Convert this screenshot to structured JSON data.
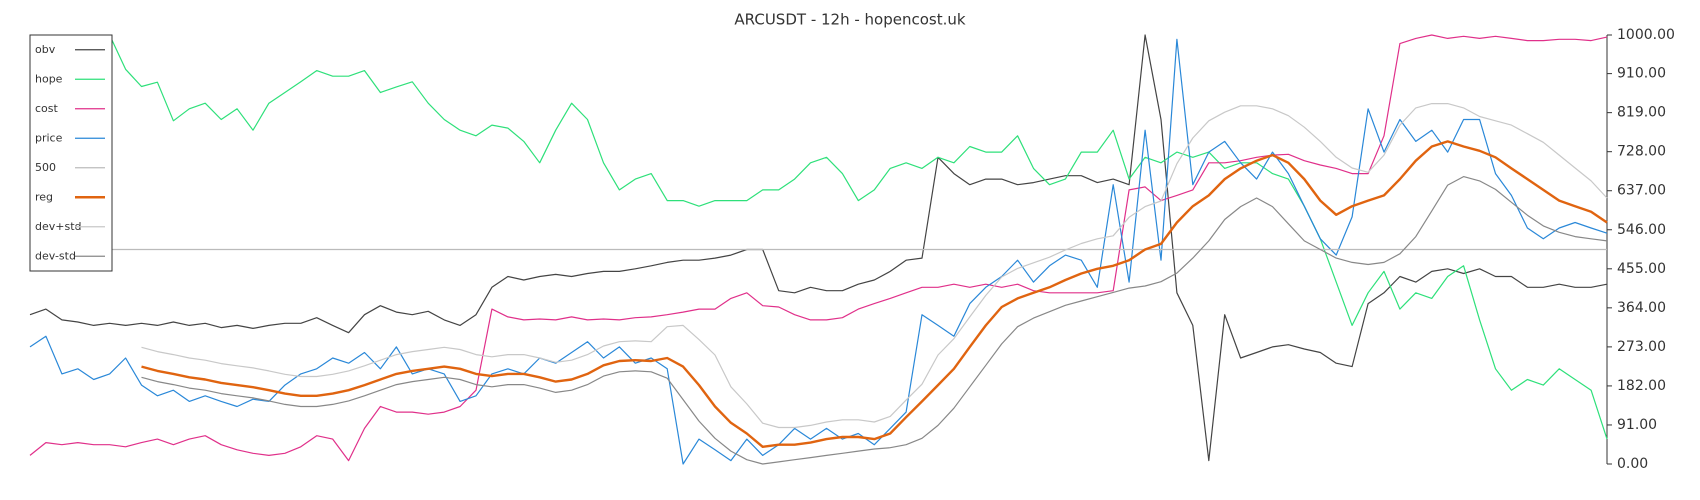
{
  "chart_data": {
    "type": "line",
    "title": "ARCUSDT - 12h - hopencost.uk",
    "ylim": [
      0,
      1000
    ],
    "yticks": [
      {
        "value": 0,
        "label": "0.00"
      },
      {
        "value": 91,
        "label": "91.00"
      },
      {
        "value": 182,
        "label": "182.00"
      },
      {
        "value": 273,
        "label": "273.00"
      },
      {
        "value": 364,
        "label": "364.00"
      },
      {
        "value": 455,
        "label": "455.00"
      },
      {
        "value": 546,
        "label": "546.00"
      },
      {
        "value": 637,
        "label": "637.00"
      },
      {
        "value": 728,
        "label": "728.00"
      },
      {
        "value": 819,
        "label": "819.00"
      },
      {
        "value": 910,
        "label": "910.00"
      },
      {
        "value": 1000,
        "label": "1000.00"
      }
    ],
    "legend": "upper left",
    "series": [
      {
        "name": "obv",
        "color": "#444444",
        "width": 1.2,
        "values": [
          348,
          361,
          336,
          331,
          323,
          328,
          323,
          328,
          323,
          331,
          323,
          328,
          318,
          323,
          316,
          323,
          328,
          328,
          341,
          323,
          306,
          348,
          369,
          354,
          348,
          356,
          336,
          323,
          348,
          412,
          437,
          429,
          437,
          442,
          437,
          444,
          449,
          449,
          455,
          462,
          470,
          475,
          475,
          480,
          487,
          500,
          500,
          404,
          399,
          412,
          404,
          404,
          419,
          429,
          449,
          475,
          480,
          715,
          677,
          651,
          664,
          664,
          651,
          656,
          664,
          672,
          672,
          656,
          664,
          651,
          1000,
          803,
          399,
          323,
          8,
          348,
          247,
          260,
          273,
          278,
          268,
          260,
          235,
          227,
          374,
          399,
          437,
          424,
          449,
          455,
          444,
          455,
          437,
          437,
          412,
          412,
          419,
          412,
          412,
          419
        ]
      },
      {
        "name": "hope",
        "color": "#2ee07a",
        "width": 1.2,
        "values": [
          null,
          null,
          null,
          null,
          null,
          1000,
          920,
          880,
          890,
          800,
          828,
          841,
          803,
          828,
          778,
          841,
          866,
          891,
          917,
          904,
          904,
          917,
          866,
          879,
          891,
          841,
          803,
          778,
          765,
          790,
          783,
          752,
          702,
          778,
          841,
          803,
          702,
          639,
          664,
          677,
          614,
          614,
          601,
          614,
          614,
          614,
          639,
          639,
          664,
          702,
          715,
          677,
          614,
          639,
          689,
          702,
          689,
          715,
          702,
          740,
          727,
          727,
          765,
          689,
          651,
          664,
          727,
          727,
          778,
          664,
          715,
          702,
          727,
          715,
          727,
          689,
          702,
          702,
          677,
          664,
          601,
          525,
          424,
          323,
          399,
          449,
          361,
          399,
          386,
          437,
          462,
          336,
          222,
          172,
          197,
          184,
          222,
          197,
          172,
          58
        ]
      },
      {
        "name": "cost",
        "color": "#e0308a",
        "width": 1.2,
        "values": [
          20,
          50,
          45,
          50,
          45,
          45,
          40,
          50,
          58,
          45,
          58,
          66,
          45,
          33,
          25,
          20,
          25,
          40,
          66,
          58,
          8,
          83,
          134,
          121,
          121,
          116,
          121,
          134,
          172,
          361,
          343,
          336,
          338,
          336,
          343,
          336,
          338,
          336,
          341,
          343,
          348,
          354,
          361,
          361,
          386,
          399,
          369,
          366,
          348,
          336,
          336,
          341,
          361,
          374,
          386,
          399,
          412,
          412,
          419,
          412,
          419,
          412,
          419,
          404,
          399,
          399,
          399,
          399,
          404,
          639,
          646,
          614,
          626,
          639,
          702,
          702,
          707,
          715,
          720,
          722,
          707,
          697,
          689,
          677,
          677,
          765,
          980,
          992,
          1000,
          992,
          997,
          992,
          997,
          992,
          987,
          987,
          990,
          990,
          987,
          995
        ]
      },
      {
        "name": "price",
        "color": "#2a88d8",
        "width": 1.2,
        "values": [
          273,
          298,
          210,
          222,
          197,
          210,
          247,
          184,
          159,
          172,
          146,
          159,
          146,
          134,
          151,
          146,
          184,
          210,
          222,
          247,
          235,
          260,
          222,
          273,
          210,
          222,
          210,
          146,
          159,
          210,
          222,
          210,
          247,
          235,
          260,
          285,
          247,
          273,
          235,
          247,
          222,
          0,
          58,
          33,
          8,
          58,
          20,
          45,
          83,
          58,
          83,
          58,
          71,
          45,
          83,
          121,
          348,
          323,
          298,
          374,
          412,
          437,
          475,
          424,
          462,
          487,
          475,
          412,
          651,
          424,
          778,
          475,
          990,
          651,
          727,
          752,
          702,
          664,
          727,
          677,
          601,
          525,
          487,
          576,
          828,
          727,
          803,
          752,
          778,
          727,
          803,
          803,
          677,
          626,
          550,
          525,
          550,
          563,
          550,
          538
        ]
      },
      {
        "name": "500",
        "color": "#bbbbbb",
        "width": 1.2,
        "values": [
          500,
          500,
          500,
          500,
          500,
          500,
          500,
          500,
          500,
          500,
          500,
          500,
          500,
          500,
          500,
          500,
          500,
          500,
          500,
          500,
          500,
          500,
          500,
          500,
          500,
          500,
          500,
          500,
          500,
          500,
          500,
          500,
          500,
          500,
          500,
          500,
          500,
          500,
          500,
          500,
          500,
          500,
          500,
          500,
          500,
          500,
          500,
          500,
          500,
          500,
          500,
          500,
          500,
          500,
          500,
          500,
          500,
          500,
          500,
          500,
          500,
          500,
          500,
          500,
          500,
          500,
          500,
          500,
          500,
          500,
          500,
          500,
          500,
          500,
          500,
          500,
          500,
          500,
          500,
          500,
          500,
          500,
          500,
          500,
          500,
          500,
          500,
          500,
          500,
          500,
          500,
          500,
          500,
          500,
          500,
          500,
          500,
          500,
          500,
          500
        ]
      },
      {
        "name": "reg",
        "color": "#e06410",
        "width": 2.4,
        "values": [
          null,
          null,
          null,
          null,
          null,
          null,
          null,
          227,
          217,
          210,
          202,
          197,
          189,
          184,
          179,
          172,
          164,
          159,
          159,
          164,
          172,
          184,
          197,
          210,
          217,
          222,
          227,
          222,
          210,
          205,
          210,
          210,
          202,
          192,
          197,
          210,
          230,
          240,
          242,
          240,
          247,
          227,
          184,
          134,
          96,
          71,
          40,
          45,
          45,
          50,
          58,
          63,
          63,
          58,
          71,
          109,
          146,
          184,
          222,
          273,
          323,
          366,
          386,
          399,
          412,
          429,
          444,
          455,
          462,
          475,
          500,
          513,
          563,
          601,
          626,
          664,
          689,
          707,
          720,
          702,
          664,
          614,
          581,
          601,
          614,
          626,
          664,
          707,
          740,
          752,
          740,
          730,
          715,
          689,
          664,
          639,
          614,
          601,
          588,
          563
        ]
      },
      {
        "name": "dev+std",
        "color": "#c8c8c8",
        "width": 1.2,
        "values": [
          null,
          null,
          null,
          null,
          null,
          null,
          null,
          272,
          262,
          255,
          247,
          242,
          234,
          229,
          224,
          217,
          209,
          204,
          204,
          209,
          217,
          229,
          242,
          255,
          262,
          267,
          272,
          267,
          255,
          250,
          255,
          255,
          247,
          237,
          242,
          255,
          275,
          285,
          287,
          285,
          320,
          323,
          290,
          254,
          180,
          140,
          95,
          85,
          85,
          90,
          98,
          103,
          103,
          98,
          111,
          149,
          186,
          254,
          292,
          343,
          393,
          436,
          456,
          469,
          482,
          499,
          514,
          525,
          532,
          575,
          600,
          613,
          700,
          760,
          800,
          820,
          835,
          835,
          828,
          812,
          785,
          752,
          715,
          690,
          680,
          720,
          790,
          830,
          840,
          840,
          830,
          810,
          800,
          790,
          770,
          750,
          720,
          690,
          660,
          620
        ]
      },
      {
        "name": "dev-std",
        "color": "#888888",
        "width": 1.2,
        "values": [
          null,
          null,
          null,
          null,
          null,
          null,
          null,
          202,
          192,
          185,
          177,
          172,
          164,
          159,
          154,
          147,
          139,
          134,
          134,
          139,
          147,
          159,
          172,
          185,
          192,
          197,
          202,
          197,
          185,
          180,
          185,
          185,
          177,
          167,
          172,
          185,
          205,
          215,
          217,
          215,
          200,
          150,
          100,
          60,
          30,
          10,
          0,
          5,
          10,
          15,
          20,
          25,
          30,
          35,
          38,
          45,
          60,
          90,
          130,
          180,
          230,
          280,
          320,
          340,
          355,
          370,
          380,
          390,
          400,
          410,
          415,
          425,
          445,
          480,
          520,
          570,
          600,
          620,
          600,
          560,
          520,
          500,
          480,
          470,
          465,
          470,
          490,
          530,
          590,
          650,
          670,
          660,
          640,
          610,
          580,
          555,
          540,
          530,
          525,
          520
        ]
      }
    ]
  }
}
